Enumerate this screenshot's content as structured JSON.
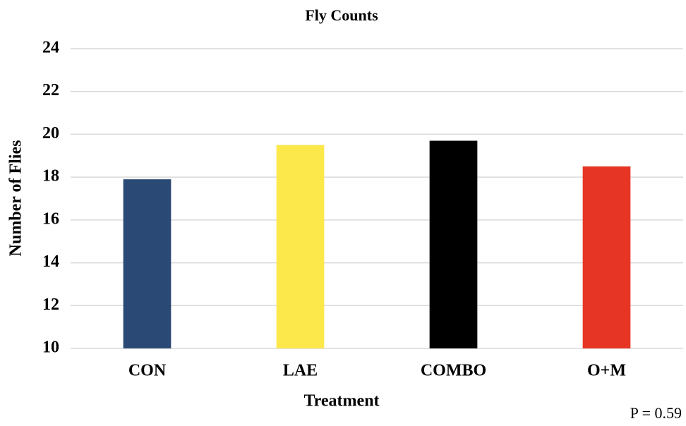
{
  "chart_data": {
    "type": "bar",
    "title": "Fly Counts",
    "x_label": "Treatment",
    "y_label": "Number of Flies",
    "categories": [
      "CON",
      "LAE",
      "COMBO",
      "O+M"
    ],
    "values": [
      17.9,
      19.5,
      19.7,
      18.5
    ],
    "colors": [
      "#2a4a75",
      "#fde84b",
      "#000000",
      "#e63524"
    ],
    "ylim": [
      10,
      24
    ],
    "yticks": [
      10,
      12,
      14,
      16,
      18,
      20,
      22,
      24
    ],
    "grid": true,
    "annotation": "P = 0.59"
  }
}
